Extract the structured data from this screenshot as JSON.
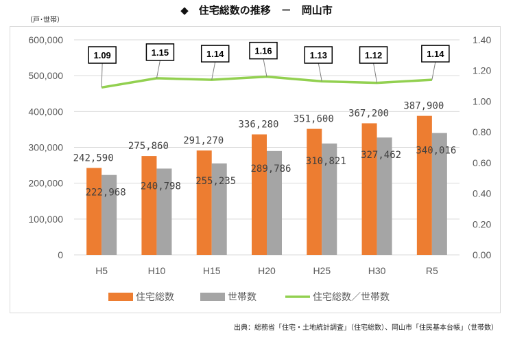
{
  "title": "◆　住宅総数の推移　－　岡山市",
  "unit_label": "（戸･世帯）",
  "source": "出典：総務省「住宅・土地統計調査」（住宅総数）、岡山市「住民基本台帳」（世帯数）",
  "colors": {
    "housing": "#ed7d31",
    "households": "#a5a5a5",
    "ratio": "#92d050",
    "grid": "#d9d9d9"
  },
  "chart_data": {
    "type": "bar",
    "categories": [
      "H5",
      "H10",
      "H15",
      "H20",
      "H25",
      "H30",
      "R5"
    ],
    "series": [
      {
        "name": "住宅総数",
        "type": "bar",
        "axis": "left",
        "values": [
          242590,
          275860,
          291270,
          336280,
          351600,
          367200,
          387900
        ],
        "labels": [
          "242,590",
          "275,860",
          "291,270",
          "336,280",
          "351,600",
          "367,200",
          "387,900"
        ]
      },
      {
        "name": "世帯数",
        "type": "bar",
        "axis": "left",
        "values": [
          222968,
          240798,
          255235,
          289786,
          310821,
          327462,
          340016
        ],
        "labels": [
          "222,968",
          "240,798",
          "255,235",
          "289,786",
          "310,821",
          "327,462",
          "340,016"
        ]
      },
      {
        "name": "住宅総数／世帯数",
        "type": "line",
        "axis": "right",
        "values": [
          1.09,
          1.15,
          1.14,
          1.16,
          1.13,
          1.12,
          1.14
        ],
        "labels": [
          "1.09",
          "1.15",
          "1.14",
          "1.16",
          "1.13",
          "1.12",
          "1.14"
        ]
      }
    ],
    "y_left": {
      "min": 0,
      "max": 600000,
      "ticks": [
        "0",
        "100,000",
        "200,000",
        "300,000",
        "400,000",
        "500,000",
        "600,000"
      ]
    },
    "y_right": {
      "min": 0,
      "max": 1.4,
      "ticks": [
        "0.00",
        "0.20",
        "0.40",
        "0.60",
        "0.80",
        "1.00",
        "1.20",
        "1.40"
      ]
    },
    "legend": [
      "住宅総数",
      "世帯数",
      "住宅総数／世帯数"
    ],
    "legend_position": "bottom",
    "grid": true
  }
}
